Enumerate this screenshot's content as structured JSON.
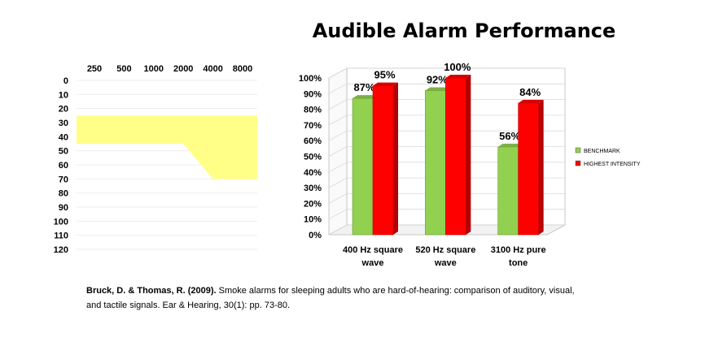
{
  "title": "Audible Alarm Performance",
  "citation": {
    "authors": "Bruck, D. & Thomas, R. (2009).",
    "text": "Smoke alarms for sleeping adults who are hard-of-hearing: comparison of auditory, visual, and tactile signals. Ear & Hearing, 30(1): pp. 73-80."
  },
  "chart_data": [
    {
      "type": "area",
      "x_labels": [
        "250",
        "500",
        "1000",
        "2000",
        "4000",
        "8000"
      ],
      "y_labels": [
        "0",
        "10",
        "20",
        "30",
        "40",
        "50",
        "60",
        "70",
        "80",
        "90",
        "100",
        "110",
        "120"
      ],
      "ylim": [
        0,
        120
      ],
      "y_inverted": true,
      "band": {
        "upper_db": [
          25,
          25,
          25,
          25,
          25,
          25
        ],
        "lower_db": [
          45,
          45,
          45,
          45,
          70,
          70
        ]
      },
      "colors": {
        "band": "#ffff88"
      }
    },
    {
      "type": "bar",
      "categories": [
        "400 Hz square wave",
        "520 Hz square wave",
        "3100 Hz pure tone"
      ],
      "series": [
        {
          "name": "BENCHMARK",
          "values": [
            87,
            92,
            56
          ],
          "labels": [
            "87%",
            "92%",
            "56%"
          ]
        },
        {
          "name": "HIGHEST INTENSITY",
          "values": [
            95,
            100,
            84
          ],
          "labels": [
            "95%",
            "100%",
            "84%"
          ]
        }
      ],
      "y_ticks": [
        "0%",
        "10%",
        "20%",
        "30%",
        "40%",
        "50%",
        "60%",
        "70%",
        "80%",
        "90%",
        "100%"
      ],
      "ylim": [
        0,
        100
      ],
      "legend": "right",
      "colors": [
        "#92d050",
        "#ff0000"
      ]
    }
  ]
}
